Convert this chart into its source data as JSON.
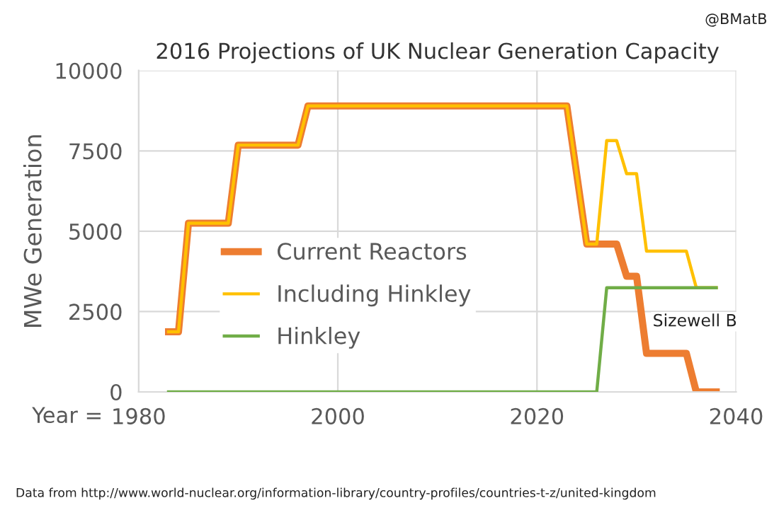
{
  "chart_data": {
    "type": "line",
    "title": "2016 Projections of UK Nuclear Generation Capacity",
    "xlabel": "Year =",
    "ylabel": "MWe Generation",
    "xlim": [
      1980,
      2040
    ],
    "xticks": [
      1980,
      2000,
      2020,
      2040
    ],
    "ylim": [
      0,
      10000
    ],
    "yticks": [
      0,
      2500,
      5000,
      7500,
      10000
    ],
    "grid": true,
    "legend": "center",
    "series": [
      {
        "name": "Current Reactors",
        "color": "#ed7d31",
        "x": [
          1983,
          1984,
          1985,
          1989,
          1990,
          1996,
          1997,
          2023,
          2025,
          2026,
          2027,
          2028,
          2029,
          2030,
          2031,
          2035,
          2036,
          2038
        ],
        "values": [
          1870,
          1870,
          5250,
          5250,
          7680,
          7680,
          8900,
          8900,
          4600,
          4600,
          4600,
          4600,
          3600,
          3600,
          1200,
          1200,
          0,
          0
        ]
      },
      {
        "name": "Including Hinkley",
        "color": "#ffc000",
        "x": [
          1983,
          1984,
          1985,
          1989,
          1990,
          1996,
          1997,
          2023,
          2025,
          2026,
          2027,
          2028,
          2029,
          2030,
          2031,
          2035,
          2036,
          2038
        ],
        "values": [
          1870,
          1870,
          5250,
          5250,
          7680,
          7680,
          8900,
          8900,
          4600,
          4600,
          7820,
          7820,
          6790,
          6790,
          4380,
          4380,
          3240,
          3240
        ]
      },
      {
        "name": "Hinkley",
        "color": "#70ad47",
        "x": [
          1983,
          2026,
          2027,
          2038
        ],
        "values": [
          0,
          0,
          3240,
          3240
        ]
      }
    ],
    "annotations": [
      {
        "text": "Sizewell B",
        "x": 2033,
        "y": 1200
      },
      "@BMatB",
      "Data from http://www.world-nuclear.org/information-library/country-profiles/countries-t-z/united-kingdom"
    ]
  }
}
